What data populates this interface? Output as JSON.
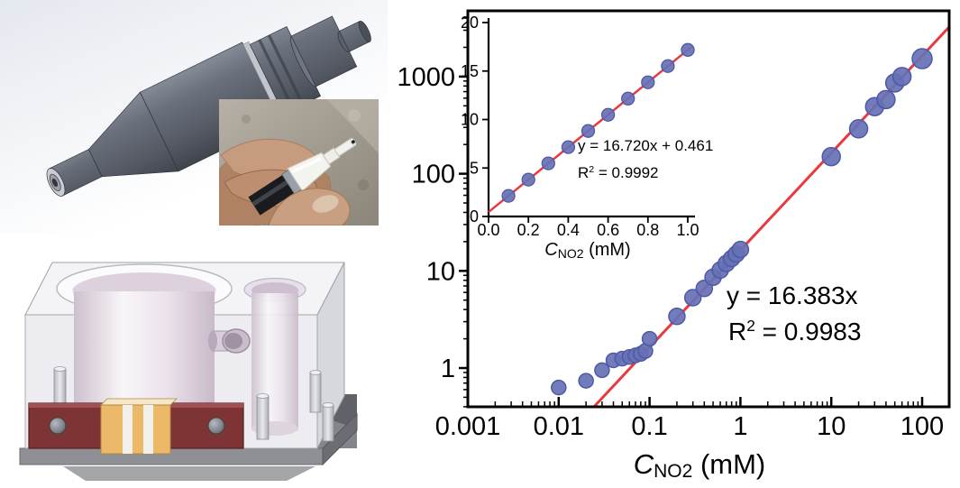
{
  "figure": {
    "panels": {
      "sensor_cad": {
        "alt": "3D CAD render of cylindrical ultrasonic sensor probe"
      },
      "probe_photo": {
        "alt": "Photo of hand holding white sensor probe tip"
      },
      "flow_cell_cad": {
        "alt": "3D CAD render of transparent flow-cell block with bores, clamp and transducer"
      }
    }
  },
  "chart_data": {
    "type": "scatter",
    "main": {
      "x_scale": "log",
      "y_scale": "log",
      "xlim": [
        0.001,
        200
      ],
      "ylim": [
        0.4,
        4800
      ],
      "xlabel": {
        "lead": "C",
        "sub": "NO2",
        "rest": " (mM)"
      },
      "ylabel": "",
      "x_ticks": [
        0.001,
        0.01,
        0.1,
        1,
        10,
        100
      ],
      "x_tick_labels": [
        "0.001",
        "0.01",
        "0.1",
        "1",
        "10",
        "100"
      ],
      "y_ticks": [
        1,
        10,
        100,
        1000
      ],
      "y_tick_labels": [
        "1",
        "10",
        "100",
        "1000"
      ],
      "grid": false,
      "marker_color": "#6671b5",
      "marker_edge": "#4e59a5",
      "fit": {
        "equation": "y = 16.383x",
        "slope": 16.383,
        "intercept": 0,
        "r2": 0.9983,
        "r2_prefix": "R",
        "r2_sup": "2",
        "r2_rest": " = 0.9983",
        "color": "#e8393f"
      },
      "points": [
        [
          0.01,
          0.63,
          8
        ],
        [
          0.02,
          0.74,
          8
        ],
        [
          0.03,
          0.95,
          8
        ],
        [
          0.04,
          1.2,
          8
        ],
        [
          0.05,
          1.25,
          8
        ],
        [
          0.06,
          1.3,
          8
        ],
        [
          0.07,
          1.35,
          8
        ],
        [
          0.08,
          1.4,
          8
        ],
        [
          0.09,
          1.5,
          8
        ],
        [
          0.1,
          2.0,
          8
        ],
        [
          0.2,
          3.4,
          9
        ],
        [
          0.3,
          5.3,
          9
        ],
        [
          0.4,
          6.6,
          9
        ],
        [
          0.5,
          8.6,
          9
        ],
        [
          0.6,
          10.2,
          9
        ],
        [
          0.7,
          11.9,
          9
        ],
        [
          0.8,
          13.4,
          9
        ],
        [
          0.9,
          14.9,
          9
        ],
        [
          1.0,
          16.6,
          9
        ],
        [
          10,
          150,
          10
        ],
        [
          20,
          290,
          10
        ],
        [
          30,
          490,
          10
        ],
        [
          40,
          580,
          10
        ],
        [
          50,
          860,
          10
        ],
        [
          60,
          1000,
          10
        ],
        [
          100,
          1530,
          11
        ]
      ]
    },
    "inset": {
      "x_scale": "linear",
      "y_scale": "linear",
      "xlim": [
        0,
        1.03
      ],
      "ylim": [
        0,
        20
      ],
      "xlabel": {
        "lead": "C",
        "sub": "NO2",
        "rest": " (mM)"
      },
      "x_ticks": [
        0,
        0.2,
        0.4,
        0.6,
        0.8,
        1.0
      ],
      "x_tick_labels": [
        "0.0",
        "0.2",
        "0.4",
        "0.6",
        "0.8",
        "1.0"
      ],
      "y_ticks": [
        0,
        5,
        10,
        15,
        20
      ],
      "y_tick_labels": [
        "0",
        "5",
        "10",
        "15",
        "20"
      ],
      "grid": false,
      "marker_color": "#6671b5",
      "marker_edge": "#4e59a5",
      "fit": {
        "equation": "y = 16.720x + 0.461",
        "slope": 16.72,
        "intercept": 0.461,
        "r2": 0.9992,
        "r2_prefix": "R",
        "r2_sup": "2",
        "r2_rest": " = 0.9992",
        "color": "#e8393f"
      },
      "points": [
        [
          0.1,
          2.13,
          7
        ],
        [
          0.2,
          3.8,
          7
        ],
        [
          0.3,
          5.48,
          7
        ],
        [
          0.4,
          7.15,
          7
        ],
        [
          0.5,
          8.82,
          7
        ],
        [
          0.6,
          10.49,
          7
        ],
        [
          0.7,
          12.16,
          7
        ],
        [
          0.8,
          13.84,
          7
        ],
        [
          0.9,
          15.51,
          7
        ],
        [
          1.0,
          17.18,
          7
        ]
      ]
    }
  }
}
